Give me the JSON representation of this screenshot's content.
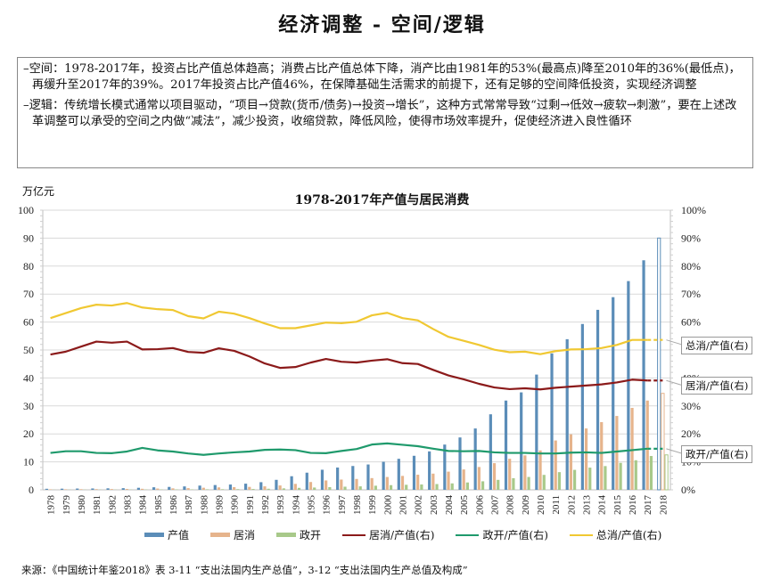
{
  "page": {
    "title": "经济调整 - 空间/逻辑",
    "bullets": [
      "–空间：1978-2017年，投资占比产值总体趋高；消费占比产值总体下降，消产比由1981年的53%(最高点)降至2010年的36%(最低点)，再缓升至2017年的39%。2017年投资占比产值46%，在保障基础生活需求的前提下，还有足够的空间降低投资，实现经济调整",
      "–逻辑：传统增长模式通常以项目驱动，“项目→贷款(货币/债务)→投资→增长”，这种方式常常导致“过剩→低效→疲软→刺激”，要在上述改革调整可以承受的空间之内做“减法”，减少投资，收缩贷款，降低风险，使得市场效率提升，促使经济进入良性循环"
    ],
    "unit_label": "万亿元",
    "source": "来源：《中国统计年鉴2018》表 3-11 “支出法国内生产总值”，3-12 “支出法国内生产总值及构成”"
  },
  "chart_data": {
    "type": "bar",
    "title": "1978-2017年产值与居民消费",
    "ylabel": "万亿元",
    "ylabel_right": "",
    "ylim": [
      0,
      100
    ],
    "ylim_right": [
      0,
      100
    ],
    "yticks": [
      0,
      10,
      20,
      30,
      40,
      50,
      60,
      70,
      80,
      90,
      100
    ],
    "yticks_right": [
      "0%",
      "10%",
      "20%",
      "30%",
      "40%",
      "50%",
      "60%",
      "70%",
      "80%",
      "90%",
      "100%"
    ],
    "grid": true,
    "legend_position": "bottom",
    "categories": [
      "1978",
      "1979",
      "1980",
      "1981",
      "1982",
      "1983",
      "1984",
      "1985",
      "1986",
      "1987",
      "1988",
      "1989",
      "1990",
      "1991",
      "1992",
      "1993",
      "1994",
      "1995",
      "1996",
      "1997",
      "1998",
      "1999",
      "2000",
      "2001",
      "2002",
      "2003",
      "2004",
      "2005",
      "2006",
      "2007",
      "2008",
      "2009",
      "2010",
      "2011",
      "2012",
      "2013",
      "2014",
      "2015",
      "2016",
      "2017",
      "2018"
    ],
    "bar_series": [
      {
        "name": "产值",
        "color": "#5b8db8",
        "values": [
          0.37,
          0.41,
          0.46,
          0.49,
          0.54,
          0.6,
          0.73,
          0.91,
          1.04,
          1.22,
          1.51,
          1.71,
          1.89,
          2.2,
          2.73,
          3.57,
          4.86,
          6.13,
          7.18,
          7.97,
          8.52,
          9.06,
          10.03,
          11.09,
          12.17,
          13.74,
          16.18,
          18.73,
          21.94,
          27.01,
          31.92,
          34.85,
          41.21,
          48.79,
          53.86,
          59.3,
          64.36,
          68.89,
          74.64,
          82.08,
          90.03
        ]
      },
      {
        "name": "居消",
        "color": "#e6b48c",
        "values": [
          0.18,
          0.2,
          0.23,
          0.26,
          0.28,
          0.32,
          0.37,
          0.46,
          0.53,
          0.61,
          0.75,
          0.87,
          0.95,
          1.05,
          1.24,
          1.56,
          2.13,
          2.79,
          3.36,
          3.67,
          3.89,
          4.19,
          4.59,
          4.98,
          5.4,
          5.79,
          6.5,
          7.29,
          8.16,
          9.53,
          11.1,
          12.31,
          14.08,
          17.65,
          19.86,
          21.94,
          24.2,
          26.41,
          29.3,
          31.92,
          34.5
        ]
      },
      {
        "name": "政开",
        "color": "#a8c98a",
        "values": [
          0.05,
          0.06,
          0.07,
          0.07,
          0.07,
          0.08,
          0.11,
          0.13,
          0.15,
          0.16,
          0.19,
          0.22,
          0.25,
          0.3,
          0.39,
          0.52,
          0.7,
          0.82,
          0.96,
          1.12,
          1.24,
          1.47,
          1.67,
          1.8,
          1.91,
          2.06,
          2.3,
          2.63,
          3.05,
          3.56,
          4.16,
          4.6,
          5.34,
          6.32,
          7.14,
          7.94,
          8.49,
          9.64,
          10.57,
          12.09,
          12.5
        ]
      }
    ],
    "line_series": [
      {
        "name": "居消/产值(右)",
        "color": "#8b1a1a",
        "axis": "right",
        "values": [
          48.4,
          49.4,
          51.2,
          53.0,
          52.6,
          53.0,
          50.2,
          50.3,
          50.7,
          49.3,
          49.0,
          50.6,
          49.7,
          47.7,
          45.2,
          43.6,
          43.9,
          45.5,
          46.8,
          45.8,
          45.5,
          46.2,
          46.7,
          45.3,
          45.0,
          42.9,
          40.9,
          39.5,
          37.9,
          36.6,
          36.0,
          36.3,
          35.9,
          36.5,
          36.9,
          37.3,
          37.7,
          38.4,
          39.4,
          39.1,
          39.1
        ]
      },
      {
        "name": "政开/产值(右)",
        "color": "#1f9a6c",
        "axis": "right",
        "values": [
          13.2,
          13.8,
          13.8,
          13.2,
          13.1,
          13.7,
          15.0,
          14.1,
          13.7,
          13.0,
          12.5,
          13.0,
          13.4,
          13.7,
          14.3,
          14.4,
          14.2,
          13.2,
          13.1,
          13.9,
          14.6,
          16.2,
          16.6,
          16.1,
          15.6,
          14.7,
          13.9,
          13.8,
          13.9,
          13.4,
          13.2,
          13.2,
          13.0,
          13.0,
          13.3,
          13.4,
          13.2,
          13.7,
          14.2,
          14.7,
          14.7
        ]
      },
      {
        "name": "总消/产值(右)",
        "color": "#f0c832",
        "axis": "right",
        "values": [
          61.4,
          63.2,
          65.0,
          66.2,
          65.9,
          66.8,
          65.2,
          64.6,
          64.3,
          62.1,
          61.3,
          63.7,
          63.0,
          61.4,
          59.5,
          57.8,
          57.8,
          58.8,
          59.8,
          59.6,
          60.1,
          62.4,
          63.3,
          61.4,
          60.6,
          57.5,
          54.7,
          53.3,
          51.8,
          50.1,
          49.2,
          49.4,
          48.5,
          49.6,
          50.2,
          50.3,
          50.7,
          51.8,
          53.6,
          53.6,
          53.6
        ]
      }
    ],
    "projected_last": true,
    "callouts": [
      {
        "series": "总消/产值(右)",
        "text": "总消/产值(右)"
      },
      {
        "series": "居消/产值(右)",
        "text": "居消/产值(右)"
      },
      {
        "series": "政开/产值(右)",
        "text": "政开/产值(右)"
      }
    ]
  }
}
